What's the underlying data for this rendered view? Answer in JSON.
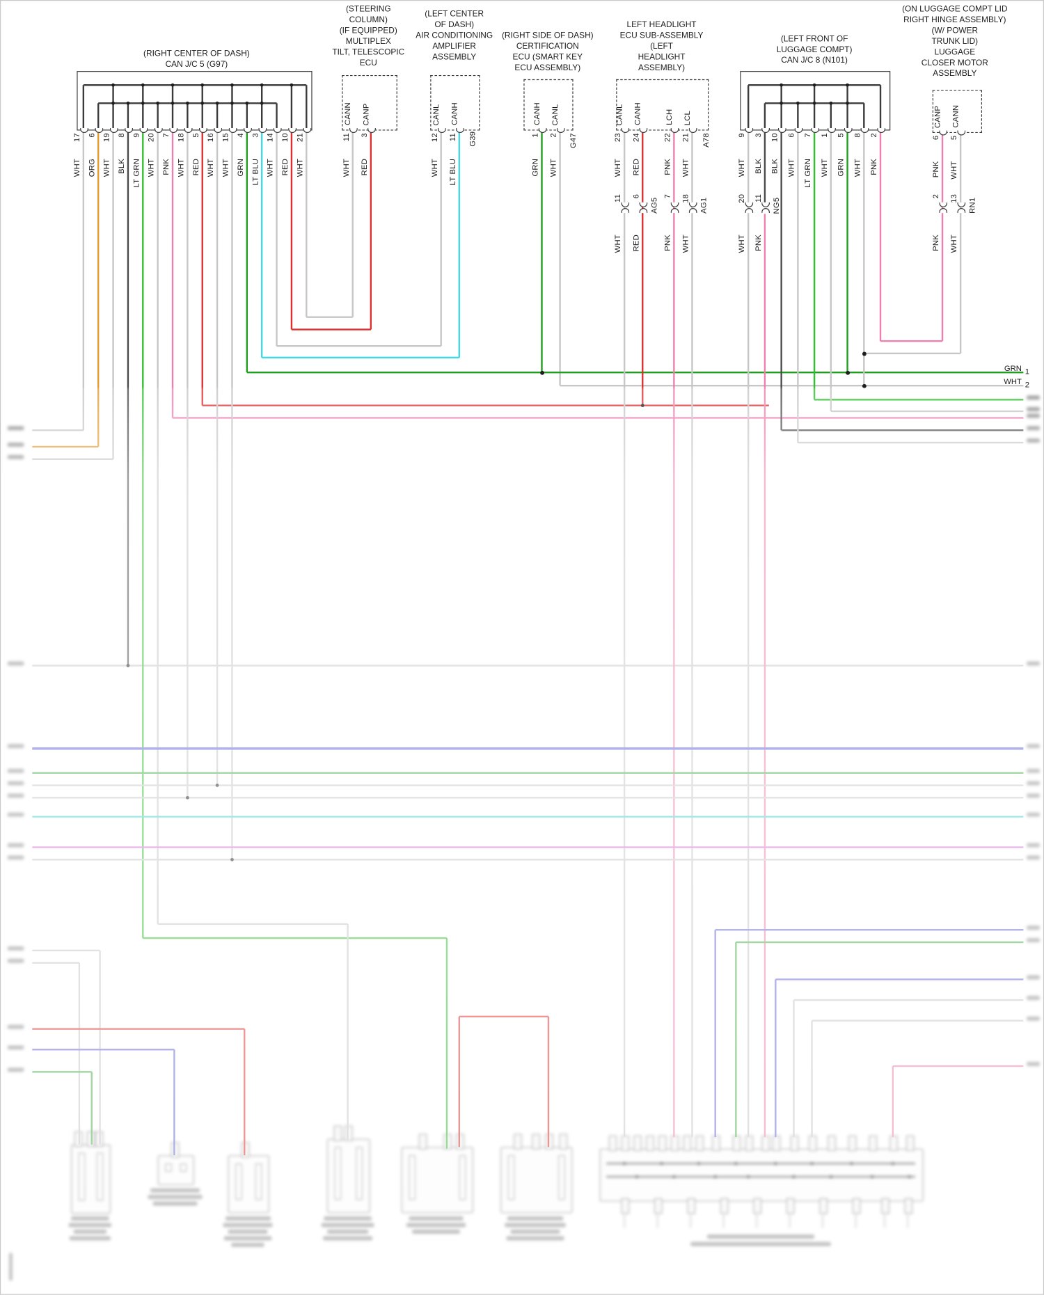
{
  "wire_colors": {
    "WHT": "#c6c6c6",
    "ORG": "#e59a30",
    "BLK": "#4a4a4a",
    "LT GRN": "#2fbf2f",
    "GRN": "#1f9e1f",
    "PNK": "#ef7fae",
    "RED": "#dd2f2f",
    "LT BLU": "#3fd9e8"
  },
  "extra_line_colors": {
    "BLU": "#6565d8",
    "CY": "#3fd4d4",
    "MG": "#d66fd6",
    "GRN2": "#44ad44",
    "RAIL": "#3a3a3a"
  },
  "components": [
    {
      "id": "can-jc-5",
      "title": [
        "(RIGHT CENTER OF DASH)",
        "CAN J/C 5 (G97)"
      ],
      "pins": [
        [
          "17",
          "WHT"
        ],
        [
          "6",
          "ORG"
        ],
        [
          "19",
          "WHT"
        ],
        [
          "8",
          "BLK"
        ],
        [
          "9",
          "LT GRN"
        ],
        [
          "20",
          "WHT"
        ],
        [
          "7",
          "PNK"
        ],
        [
          "18",
          "WHT"
        ],
        [
          "5",
          "RED"
        ],
        [
          "16",
          "WHT"
        ],
        [
          "15",
          "WHT"
        ],
        [
          "4",
          "GRN"
        ],
        [
          "3",
          "LT BLU"
        ],
        [
          "14",
          "WHT"
        ],
        [
          "10",
          "RED"
        ],
        [
          "21",
          "WHT"
        ]
      ]
    },
    {
      "id": "multiplex-tilt-telescopic-ecu",
      "title": [
        "(STEERING",
        "COLUMN)",
        "(IF EQUIPPED)",
        "MULTIPLEX",
        "TILT, TELESCOPIC",
        "ECU"
      ],
      "pins": [
        [
          "11",
          "WHT",
          "CANN"
        ],
        [
          "3",
          "RED",
          "CANP"
        ]
      ]
    },
    {
      "id": "ac-amplifier",
      "title": [
        "(LEFT CENTER",
        "OF DASH)",
        "AIR CONDITIONING",
        "AMPLIFIER",
        "ASSEMBLY"
      ],
      "code": "G39",
      "pins": [
        [
          "12",
          "WHT",
          "CANL"
        ],
        [
          "11",
          "LT BLU",
          "CANH"
        ]
      ]
    },
    {
      "id": "certification-ecu",
      "title": [
        "(RIGHT SIDE OF DASH)",
        "CERTIFICATION",
        "ECU (SMART KEY",
        "ECU ASSEMBLY)"
      ],
      "code": "G47",
      "pins": [
        [
          "1",
          "GRN",
          "CANH"
        ],
        [
          "2",
          "WHT",
          "CANL"
        ]
      ]
    },
    {
      "id": "left-headlight-ecu",
      "title": [
        "LEFT HEADLIGHT",
        "ECU SUB-ASSEMBLY",
        "(LEFT",
        "HEADLIGHT",
        "ASSEMBLY)"
      ],
      "code": "A78",
      "pins": [
        [
          "23",
          "WHT",
          "CANL"
        ],
        [
          "24",
          "RED",
          "CANH"
        ],
        [
          "22",
          "PNK",
          "LCH"
        ],
        [
          "21",
          "WHT",
          "LCL"
        ]
      ],
      "splices": [
        [
          "11",
          "WHT"
        ],
        [
          "6",
          "RED",
          "AG5"
        ],
        [
          "7",
          "PNK"
        ],
        [
          "18",
          "WHT",
          "AG1"
        ]
      ]
    },
    {
      "id": "can-jc-8",
      "title": [
        "(LEFT FRONT OF",
        "LUGGAGE COMPT)",
        "CAN J/C 8 (N101)"
      ],
      "pins": [
        [
          "9",
          "WHT"
        ],
        [
          "3",
          "BLK"
        ],
        [
          "10",
          "BLK"
        ],
        [
          "6",
          "WHT"
        ],
        [
          "7",
          "LT GRN"
        ],
        [
          "1",
          "WHT"
        ],
        [
          "5",
          "GRN"
        ],
        [
          "8",
          "WHT"
        ],
        [
          "2",
          "PNK"
        ]
      ],
      "splices": [
        [
          "20",
          "WHT"
        ],
        [
          "11",
          "PNK",
          "NG5"
        ]
      ]
    },
    {
      "id": "luggage-closer-motor",
      "title": [
        "(ON LUGGAGE COMPT LID",
        "RIGHT HINGE ASSEMBLY)",
        "(W/ POWER",
        "TRUNK LID)",
        "LUGGAGE",
        "CLOSER MOTOR",
        "ASSEMBLY"
      ],
      "pins": [
        [
          "6",
          "PNK",
          "CANP"
        ],
        [
          "5",
          "WHT",
          "CANN"
        ]
      ],
      "splices": [
        [
          "2",
          "PNK"
        ],
        [
          "13",
          "WHT",
          "RN1"
        ]
      ]
    }
  ],
  "edge_labels": [
    [
      "GRN",
      "1"
    ],
    [
      "WHT",
      "2"
    ]
  ]
}
